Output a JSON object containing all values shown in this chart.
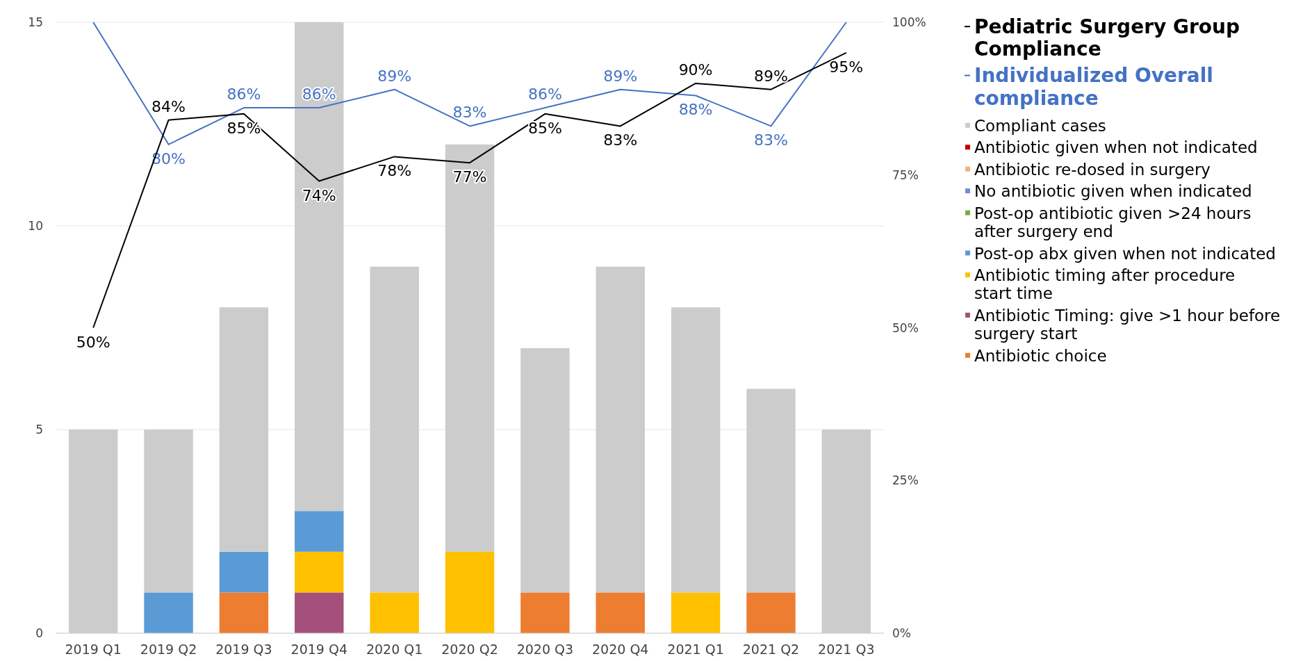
{
  "chart_data": {
    "type": "bar",
    "stacked": true,
    "legend": "right",
    "grid": "y",
    "categories": [
      "2019 Q1",
      "2019 Q2",
      "2019 Q3",
      "2019 Q4",
      "2020 Q1",
      "2020 Q2",
      "2020 Q3",
      "2020 Q4",
      "2021 Q1",
      "2021 Q2",
      "2021 Q3"
    ],
    "ylim": [
      0,
      15
    ],
    "yticks": [
      0,
      5,
      10,
      15
    ],
    "y2lim": [
      0,
      100
    ],
    "y2ticks": [
      {
        "value": 0,
        "label": "0%"
      },
      {
        "value": 25,
        "label": "25%"
      },
      {
        "value": 50,
        "label": "50%"
      },
      {
        "value": 75,
        "label": "75%"
      },
      {
        "value": 100,
        "label": "100%"
      }
    ],
    "series": [
      {
        "name": "Antibiotic choice",
        "color": "#ed7d31",
        "values": [
          0,
          0,
          1,
          0,
          0,
          0,
          1,
          1,
          0,
          1,
          0
        ]
      },
      {
        "name": "Antibiotic Timing: give >1 hour before surgery start",
        "color": "#a5507a",
        "values": [
          0,
          0,
          0,
          1,
          0,
          0,
          0,
          0,
          0,
          0,
          0
        ]
      },
      {
        "name": "Antibiotic timing after procedure start time",
        "color": "#ffc000",
        "values": [
          0,
          0,
          0,
          1,
          1,
          2,
          0,
          0,
          1,
          0,
          0
        ]
      },
      {
        "name": "Post-op abx given when not indicated",
        "color": "#5b9bd5",
        "values": [
          0,
          1,
          1,
          1,
          0,
          0,
          0,
          0,
          0,
          0,
          0
        ]
      },
      {
        "name": "Post-op antibiotic given >24 hours after surgery end",
        "color": "#70ad47",
        "values": [
          0,
          0,
          0,
          0,
          0,
          0,
          0,
          0,
          0,
          0,
          0
        ]
      },
      {
        "name": "No antibiotic given when indicated",
        "color": "#6f8fcf",
        "values": [
          0,
          0,
          0,
          0,
          0,
          0,
          0,
          0,
          0,
          0,
          0
        ]
      },
      {
        "name": "Antibiotic re-dosed in surgery",
        "color": "#f4b183",
        "values": [
          0,
          0,
          0,
          0,
          0,
          0,
          0,
          0,
          0,
          0,
          0
        ]
      },
      {
        "name": "Antibiotic given when not indicated",
        "color": "#c00000",
        "values": [
          0,
          0,
          0,
          0,
          0,
          0,
          0,
          0,
          0,
          0,
          0
        ]
      },
      {
        "name": "Compliant cases",
        "color": "#cccccc",
        "values": [
          5,
          4,
          6,
          12,
          8,
          10,
          6,
          8,
          7,
          5,
          5
        ]
      },
      {
        "name": "Individualized Overall compliance",
        "type": "line",
        "axis": "y2",
        "color": "#4472c4",
        "values": [
          100,
          80,
          86,
          86,
          89,
          83,
          86,
          89,
          88,
          83,
          100
        ],
        "value_labels": [
          null,
          "80%",
          "86%",
          "86%",
          "89%",
          "83%",
          "86%",
          "89%",
          "88%",
          "83%",
          null
        ]
      },
      {
        "name": "Pediatric Surgery Group Compliance",
        "type": "line",
        "axis": "y2",
        "color": "#000000",
        "values": [
          50,
          84,
          85,
          74,
          78,
          77,
          85,
          83,
          90,
          89,
          95
        ],
        "value_labels": [
          "50%",
          "84%",
          "85%",
          "74%",
          "78%",
          "77%",
          "85%",
          "83%",
          "90%",
          "89%",
          "95%"
        ]
      }
    ]
  }
}
